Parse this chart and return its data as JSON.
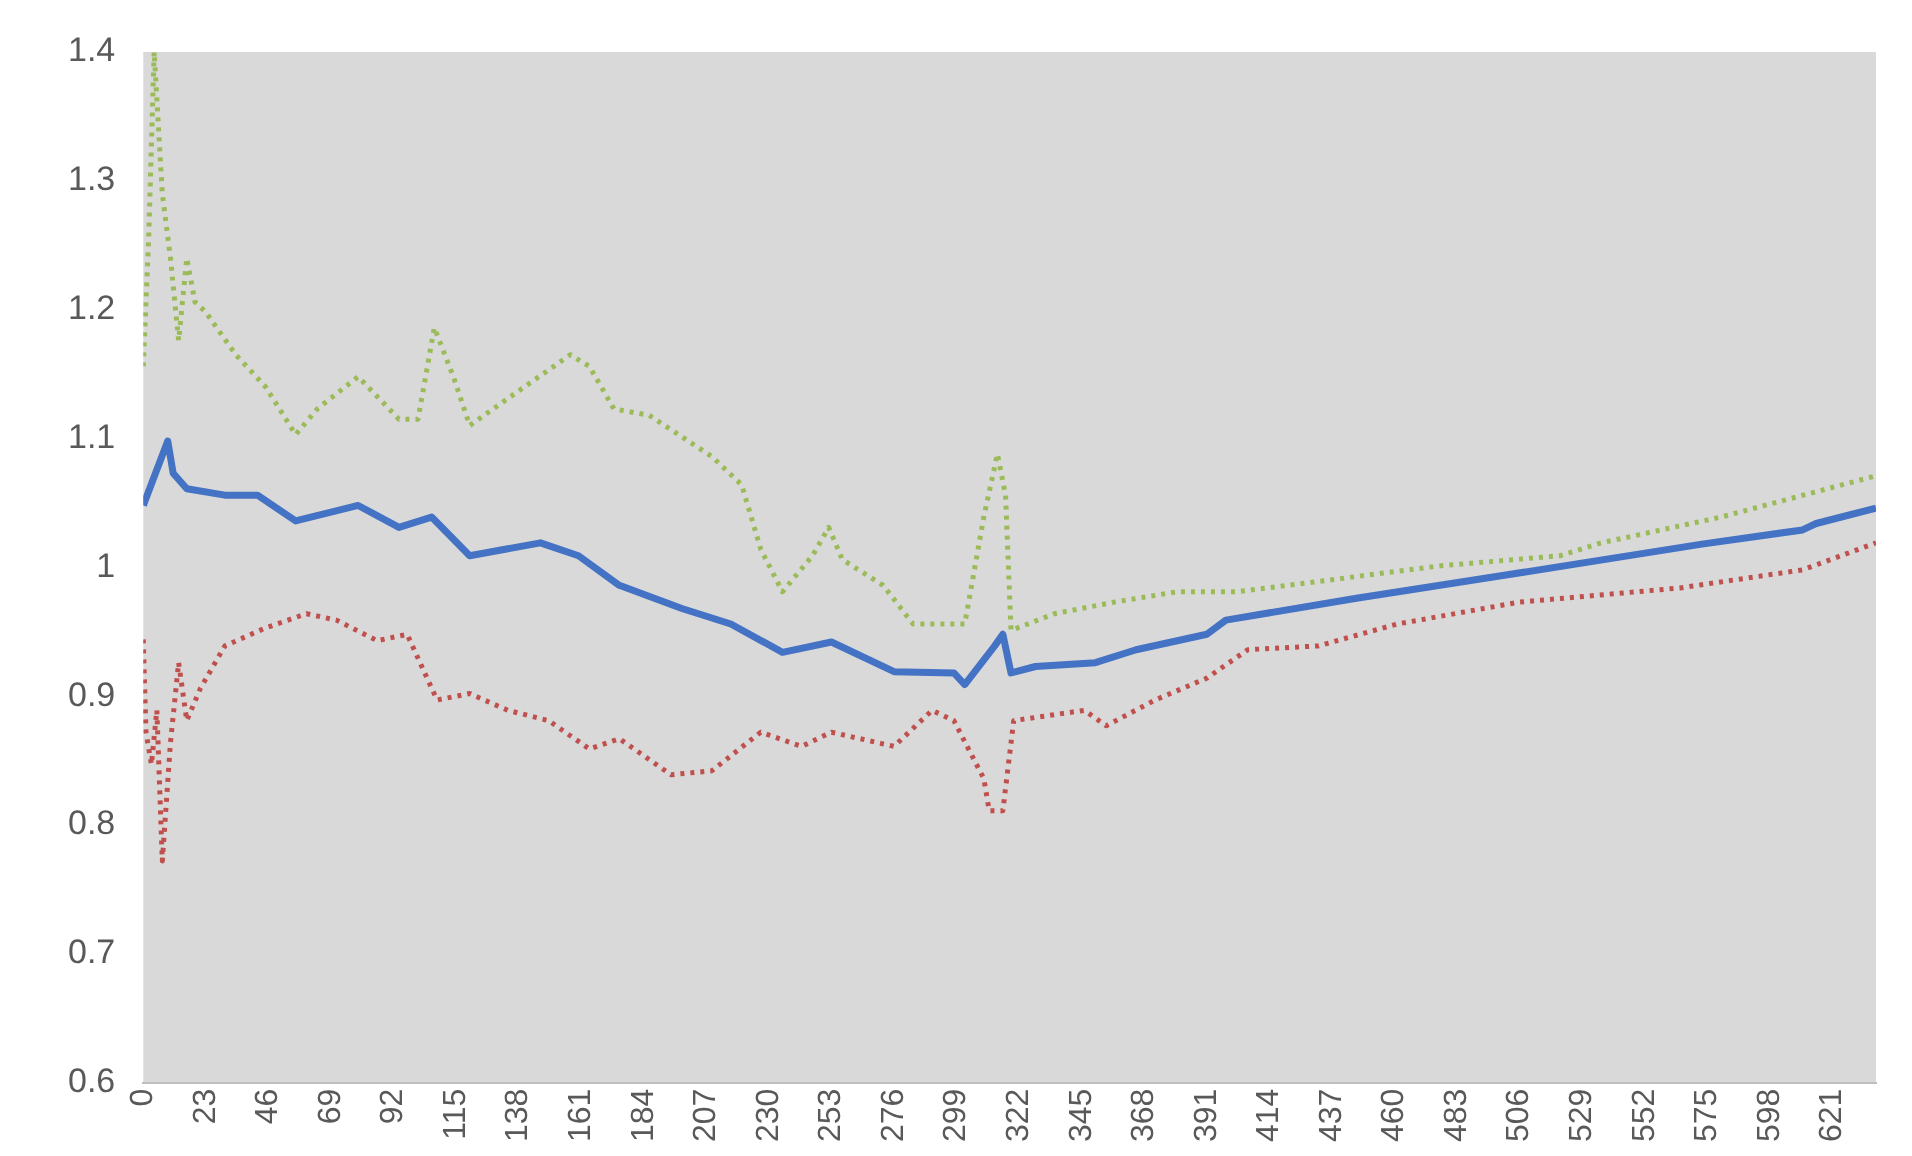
{
  "chart_data": {
    "type": "line",
    "xlim": [
      0,
      637
    ],
    "ylim": [
      0.6,
      1.4
    ],
    "xticks": [
      0,
      23,
      46,
      69,
      92,
      115,
      138,
      161,
      184,
      207,
      230,
      253,
      276,
      299,
      322,
      345,
      368,
      391,
      414,
      437,
      460,
      483,
      506,
      529,
      552,
      575,
      598,
      621
    ],
    "yticks": [
      0.6,
      0.7,
      0.8,
      0.9,
      1,
      1.1,
      1.2,
      1.3,
      1.4
    ],
    "grid": false,
    "legend": false,
    "marker": "none",
    "series": [
      {
        "color": "#c0504d",
        "line_style": "dotted",
        "x": [
          0,
          1,
          3,
          5,
          7,
          10,
          13,
          16,
          21,
          30,
          45,
          60,
          71,
          86,
          97,
          108,
          120,
          134,
          149,
          164,
          175,
          194,
          209,
          227,
          242,
          253,
          276,
          290,
          298,
          309,
          311,
          316,
          320,
          346,
          354,
          372,
          391,
          406,
          432,
          461,
          506,
          565,
          610,
          637
        ],
        "values": [
          0.944,
          0.872,
          0.847,
          0.889,
          0.772,
          0.864,
          0.926,
          0.881,
          0.906,
          0.939,
          0.953,
          0.964,
          0.959,
          0.943,
          0.948,
          0.897,
          0.902,
          0.889,
          0.881,
          0.859,
          0.867,
          0.839,
          0.842,
          0.872,
          0.861,
          0.872,
          0.861,
          0.889,
          0.881,
          0.836,
          0.811,
          0.811,
          0.881,
          0.889,
          0.877,
          0.897,
          0.914,
          0.936,
          0.939,
          0.956,
          0.973,
          0.984,
          0.998,
          1.019
        ]
      },
      {
        "color": "#9bbb59",
        "line_style": "dotted",
        "x": [
          0,
          2,
          4,
          7,
          10,
          13,
          16,
          19,
          23,
          34,
          45,
          56,
          64,
          79,
          94,
          101,
          107,
          114,
          120,
          134,
          157,
          164,
          173,
          186,
          209,
          220,
          227,
          235,
          246,
          252,
          257,
          272,
          283,
          302,
          309,
          314,
          317,
          319,
          335,
          357,
          380,
          402,
          432,
          476,
          521,
          536,
          580,
          637
        ],
        "values": [
          1.156,
          1.256,
          1.4,
          1.29,
          1.24,
          1.176,
          1.24,
          1.206,
          1.198,
          1.165,
          1.14,
          1.103,
          1.123,
          1.148,
          1.115,
          1.115,
          1.186,
          1.148,
          1.11,
          1.131,
          1.165,
          1.156,
          1.123,
          1.118,
          1.086,
          1.064,
          1.014,
          0.981,
          1.009,
          1.031,
          1.006,
          0.986,
          0.956,
          0.956,
          1.039,
          1.088,
          1.056,
          0.951,
          0.964,
          0.973,
          0.981,
          0.981,
          0.989,
          1.001,
          1.009,
          1.019,
          1.039,
          1.071
        ]
      },
      {
        "color": "#4472c4",
        "line_style": "solid",
        "x": [
          0,
          9,
          11,
          16,
          30,
          42,
          56,
          79,
          94,
          106,
          120,
          146,
          160,
          175,
          198,
          216,
          235,
          253,
          276,
          298,
          302,
          313,
          316,
          319,
          328,
          350,
          365,
          391,
          398,
          446,
          498,
          573,
          610,
          615,
          637
        ],
        "values": [
          1.048,
          1.098,
          1.073,
          1.061,
          1.056,
          1.056,
          1.036,
          1.048,
          1.031,
          1.039,
          1.009,
          1.019,
          1.009,
          0.986,
          0.968,
          0.956,
          0.934,
          0.942,
          0.919,
          0.918,
          0.909,
          0.939,
          0.948,
          0.918,
          0.923,
          0.926,
          0.936,
          0.948,
          0.959,
          0.976,
          0.993,
          1.018,
          1.029,
          1.034,
          1.046
        ]
      }
    ]
  }
}
